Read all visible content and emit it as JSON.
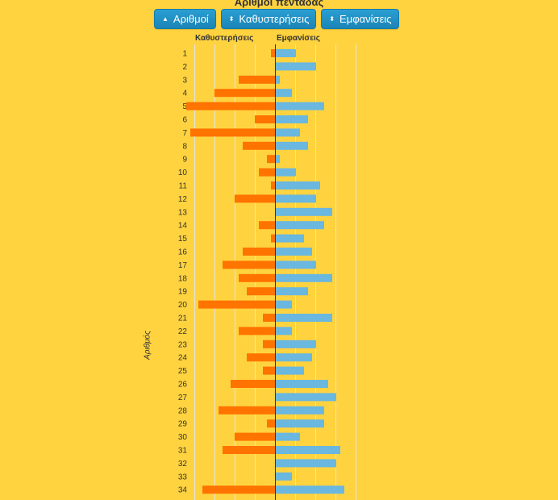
{
  "title": "Αριθμοί πεντάδας",
  "buttons": [
    {
      "label": "Αριθμοί",
      "icon": "sort-up-icon",
      "glyph": "▲"
    },
    {
      "label": "Καθυστερήσεις",
      "icon": "sort-both-icon",
      "glyph": "⬍"
    },
    {
      "label": "Εμφανίσεις",
      "icon": "sort-both-icon",
      "glyph": "⬍"
    }
  ],
  "chart_data": {
    "type": "bar",
    "orientation": "horizontal-diverging",
    "categories": [
      "1",
      "2",
      "3",
      "4",
      "5",
      "6",
      "7",
      "8",
      "9",
      "10",
      "11",
      "12",
      "13",
      "14",
      "15",
      "16",
      "17",
      "18",
      "19",
      "20",
      "21",
      "22",
      "23",
      "24",
      "25",
      "26",
      "27",
      "28",
      "29",
      "30",
      "31",
      "32",
      "33",
      "34"
    ],
    "ylabel": "Αριθμός",
    "left_scale_max": 20,
    "right_scale_max": 20,
    "series": [
      {
        "name": "Καθυστερήσεις",
        "side": "left",
        "color": "#FF7300",
        "values": [
          1,
          0,
          9,
          15,
          22,
          5,
          21,
          8,
          2,
          4,
          1,
          10,
          0,
          4,
          1,
          8,
          13,
          9,
          7,
          19,
          3,
          9,
          3,
          7,
          3,
          11,
          0,
          14,
          2,
          10,
          13,
          0,
          0,
          18
        ]
      },
      {
        "name": "Εμφανίσεις",
        "side": "right",
        "color": "#6AB7E0",
        "values": [
          5,
          10,
          1,
          4,
          12,
          8,
          6,
          8,
          1,
          5,
          11,
          10,
          14,
          12,
          7,
          9,
          10,
          14,
          8,
          4,
          14,
          4,
          10,
          9,
          7,
          13,
          15,
          12,
          12,
          6,
          16,
          15,
          4,
          17
        ]
      }
    ],
    "grid": true,
    "colors": {
      "axis": "#333333",
      "grid": "#E3E3E3"
    }
  }
}
